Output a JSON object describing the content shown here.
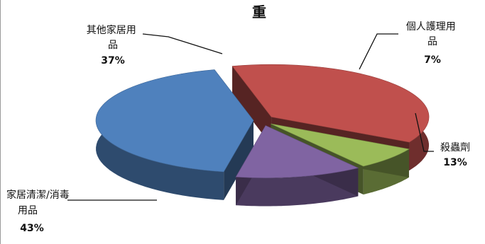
{
  "chart_data": {
    "type": "pie",
    "title": "重",
    "style": "3d-exploded",
    "slices": [
      {
        "label": "其他家居用品",
        "value": 37,
        "percent_label": "37%",
        "color": "#c0504d"
      },
      {
        "label": "個人護理用品",
        "value": 7,
        "percent_label": "7%",
        "color": "#9bbb59"
      },
      {
        "label": "殺蟲劑",
        "value": 13,
        "percent_label": "13%",
        "color": "#8064a2"
      },
      {
        "label": "家居清潔/消毒用品",
        "value": 43,
        "percent_label": "43%",
        "color": "#4f81bd"
      }
    ],
    "legend": "none"
  }
}
